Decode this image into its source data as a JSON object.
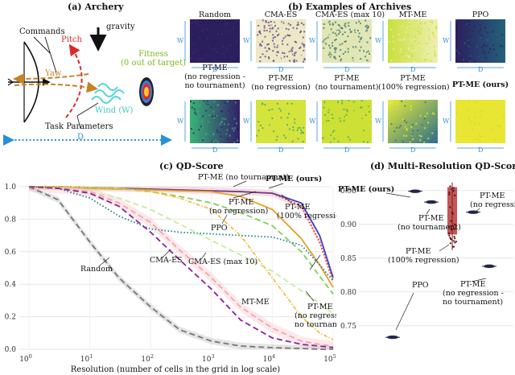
{
  "panel_a": {
    "title": "(a) Archery",
    "labels": {
      "commands": "Commands",
      "pitch": "Pitch",
      "yaw": "Yaw",
      "gravity": "gravity",
      "fitness": "Fitness",
      "fitness_note": "(0 out of target)",
      "wind": "Wind (W)",
      "task_params": "Task Parameters",
      "distance": "D"
    }
  },
  "panel_b": {
    "title": "(b) Examples of Archives",
    "axis_w": "W",
    "axis_d": "D",
    "row1": [
      {
        "name": "Random",
        "style": "random"
      },
      {
        "name": "CMA-ES",
        "style": "cmaes"
      },
      {
        "name": "CMA-ES (max 10)",
        "style": "cmaes10"
      },
      {
        "name": "MT-ME",
        "style": "mtme"
      },
      {
        "name": "PPO",
        "style": "ppo"
      }
    ],
    "row2": [
      {
        "name": "PT-ME (no regression - no tournament)",
        "line1": "PT-ME",
        "line2": "(no regression -",
        "line3": "no tournament)",
        "style": "ptme_nn"
      },
      {
        "name": "PT-ME (no regression)",
        "line1": "PT-ME",
        "line2": "(no regression)",
        "line3": "",
        "style": "ptme_nr"
      },
      {
        "name": "PT-ME (no tournament)",
        "line1": "PT-ME",
        "line2": "(no tournament)",
        "line3": "",
        "style": "ptme_nt"
      },
      {
        "name": "PT-ME (100% regression)",
        "line1": "PT-ME",
        "line2": "(100% regression)",
        "line3": "",
        "style": "ptme_100"
      },
      {
        "name": "PT-ME (ours)",
        "line1": "PT-ME (ours)",
        "line2": "",
        "line3": "",
        "style": "ptme_ours"
      }
    ]
  },
  "panel_c": {
    "title": "(c) QD-Score",
    "annotations": {
      "no_tournament": "PT-ME (no tournament)",
      "ours": "PT-ME (ours)",
      "no_regression_1": "PT-ME",
      "no_regression_2": "(no regression)",
      "full_regression_1": "PT-ME",
      "full_regression_2": "(100% regression)",
      "ppo": "PPO",
      "random": "Random",
      "cmaes": "CMA-ES",
      "cmaes10": "CMA-ES (max 10)",
      "mtme": "MT-ME",
      "nn_1": "PT-ME",
      "nn_2": "(no regression -",
      "nn_3": "no tournament)"
    }
  },
  "panel_d": {
    "title": "(d) Multi-Resolution QD-Score",
    "annotations": {
      "ours": "PT-ME (ours)",
      "nt_1": "PT-ME",
      "nt_2": "(no tournament)",
      "nr_1": "PT-ME",
      "nr_2": "(no regression)",
      "full_1": "PT-ME",
      "full_2": "(100% regression)",
      "nn_1": "PT-ME",
      "nn_2": "(no regression -",
      "nn_3": "no tournament)",
      "ppo": "PPO"
    }
  },
  "chart_data": [
    {
      "type": "line",
      "title": "(c) QD-Score",
      "xlabel": "Resolution (number of cells in the grid in log scale)",
      "ylabel": "",
      "xscale": "log",
      "xlim": [
        1,
        100000
      ],
      "ylim": [
        0.0,
        1.0
      ],
      "x_ticks": [
        {
          "label": "10",
          "sup": "0",
          "v": 1
        },
        {
          "label": "10",
          "sup": "1",
          "v": 10
        },
        {
          "label": "10",
          "sup": "2",
          "v": 100
        },
        {
          "label": "10",
          "sup": "3",
          "v": 1000
        },
        {
          "label": "10",
          "sup": "4",
          "v": 10000
        },
        {
          "label": "10",
          "sup": "5",
          "v": 100000
        }
      ],
      "y_ticks": [
        "0.0",
        "0.2",
        "0.4",
        "0.6",
        "0.8",
        "1.0"
      ],
      "x": [
        1,
        3,
        10,
        30,
        100,
        300,
        1000,
        3000,
        10000,
        30000,
        60000,
        100000
      ],
      "series": [
        {
          "name": "PT-ME (ours)",
          "color": "#3b3fc4",
          "dash": "",
          "values": [
            1.0,
            1.0,
            0.995,
            0.99,
            0.985,
            0.98,
            0.975,
            0.97,
            0.96,
            0.9,
            0.7,
            0.44
          ]
        },
        {
          "name": "PT-ME (no tournament)",
          "color": "#d62c2c",
          "dash": "1.5 2.5",
          "values": [
            1.0,
            1.0,
            0.995,
            0.99,
            0.985,
            0.98,
            0.975,
            0.97,
            0.96,
            0.88,
            0.66,
            0.42
          ]
        },
        {
          "name": "PT-ME (100% regression)",
          "color": "#e2a02a",
          "dash": "",
          "values": [
            1.0,
            1.0,
            0.99,
            0.985,
            0.98,
            0.975,
            0.97,
            0.94,
            0.86,
            0.68,
            0.52,
            0.38
          ]
        },
        {
          "name": "PT-ME (no regression)",
          "color": "#7fcf5c",
          "dash": "7 4",
          "values": [
            1.0,
            1.0,
            0.995,
            0.99,
            0.97,
            0.94,
            0.9,
            0.84,
            0.76,
            0.6,
            0.45,
            0.34
          ]
        },
        {
          "name": "PPO",
          "color": "#17808a",
          "dash": "1.5 2.5",
          "values": [
            1.0,
            0.99,
            0.93,
            0.82,
            0.74,
            0.72,
            0.71,
            0.7,
            0.69,
            0.64,
            0.52,
            0.42
          ]
        },
        {
          "name": "PT-ME (no regression - no tournament)",
          "color": "#c4ef9a",
          "dash": "7 4",
          "values": [
            1.0,
            0.99,
            0.97,
            0.93,
            0.86,
            0.77,
            0.67,
            0.58,
            0.48,
            0.36,
            0.28,
            0.22
          ]
        },
        {
          "name": "MT-ME",
          "color": "#f0c24a",
          "dash": "5 2 1.5 2",
          "values": [
            1.0,
            1.0,
            0.995,
            0.99,
            0.97,
            0.93,
            0.86,
            0.7,
            0.44,
            0.2,
            0.1,
            0.06
          ]
        },
        {
          "name": "CMA-ES (max 10)",
          "color": "#f4a6b0",
          "dash": "7 4",
          "values": [
            1.0,
            0.99,
            0.97,
            0.9,
            0.78,
            0.61,
            0.44,
            0.26,
            0.13,
            0.05,
            0.03,
            0.02
          ]
        },
        {
          "name": "CMA-ES",
          "color": "#8c1f9a",
          "dash": "7 4",
          "values": [
            1.0,
            0.99,
            0.96,
            0.88,
            0.72,
            0.55,
            0.37,
            0.18,
            0.07,
            0.03,
            0.02,
            0.01
          ]
        },
        {
          "name": "Random",
          "color": "#777777",
          "dash": "7 4",
          "values": [
            1.0,
            0.92,
            0.66,
            0.44,
            0.26,
            0.12,
            0.05,
            0.02,
            0.01,
            0.005,
            0.0,
            0.0
          ]
        }
      ]
    },
    {
      "type": "violin",
      "title": "(d) Multi-Resolution QD-Score",
      "ylim": [
        0.72,
        0.97
      ],
      "y_ticks": [
        "0.75",
        "0.80",
        "0.85",
        "0.90",
        "0.95"
      ],
      "groups": [
        {
          "name": "PPO",
          "median": 0.733,
          "color": "#22294a"
        },
        {
          "name": "PT-ME (ours)",
          "median": 0.949,
          "color": "#22294a"
        },
        {
          "name": "PT-ME (no tournament)",
          "median": 0.933,
          "color": "#22294a"
        },
        {
          "name": "PT-ME (100% regression)",
          "median": 0.93,
          "color": "#9b2a2e"
        },
        {
          "name": "PT-ME (no regression)",
          "median": 0.918,
          "color": "#22294a"
        },
        {
          "name": "PT-ME (no regression - no tournament)",
          "median": 0.838,
          "color": "#22294a"
        }
      ]
    }
  ]
}
